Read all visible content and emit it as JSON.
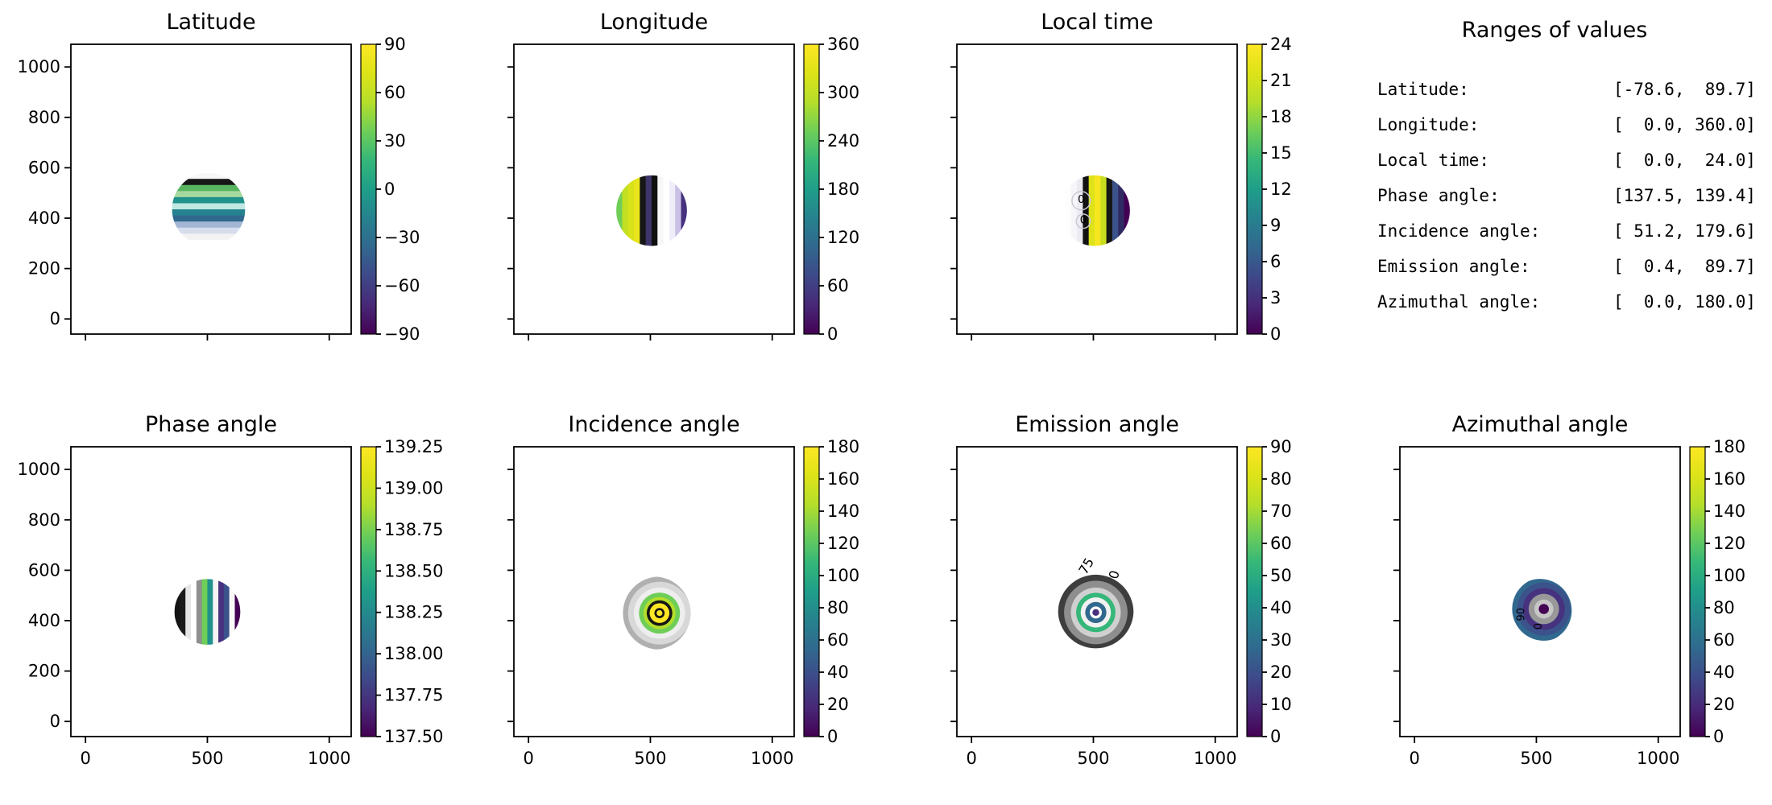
{
  "figure": {
    "background": "#ffffff",
    "text_color": "#000000"
  },
  "viridis": [
    "#440154",
    "#482878",
    "#3e4989",
    "#31688e",
    "#26828e",
    "#1f9e89",
    "#35b779",
    "#6ece58",
    "#b5de2b",
    "#dde318",
    "#fde725"
  ],
  "ranges_panel": {
    "title": "Ranges of values",
    "rows": [
      {
        "label": "Latitude:",
        "value": "[-78.6,  89.7]"
      },
      {
        "label": "Longitude:",
        "value": "[  0.0, 360.0]"
      },
      {
        "label": "Local time:",
        "value": "[  0.0,  24.0]"
      },
      {
        "label": "Phase angle:",
        "value": "[137.5, 139.4]"
      },
      {
        "label": "Incidence angle:",
        "value": "[ 51.2, 179.6]"
      },
      {
        "label": "Emission angle:",
        "value": "[  0.4,  89.7]"
      },
      {
        "label": "Azimuthal angle:",
        "value": "[  0.0, 180.0]"
      }
    ]
  },
  "chart_data": [
    {
      "id": "latitude",
      "type": "heatmap",
      "title": "Latitude",
      "xlabel": "",
      "ylabel": "",
      "grid": false,
      "xlim": [
        -60,
        1090
      ],
      "ylim": [
        -60,
        1090
      ],
      "xticks": [
        0,
        500,
        1000
      ],
      "yticks": [
        0,
        200,
        400,
        600,
        800,
        1000
      ],
      "show_xticklabels": false,
      "show_yticklabels": true,
      "data_range": [
        -78.6,
        89.7
      ],
      "colorbar": {
        "min": -90,
        "max": 90,
        "ticks": [
          90,
          60,
          30,
          0,
          -30,
          -60,
          -90
        ],
        "decimals": 0
      },
      "disk": {
        "cx": 505,
        "cy": 435,
        "r": 150,
        "pattern": "h-stripes",
        "stripes": [
          "#f7f7f7",
          "#161616",
          "#57b560",
          "#a6d9a0",
          "#21918c",
          "#bfe8e2",
          "#26828e",
          "#31688e",
          "#a3b6d4",
          "#d6dded",
          "#f2f2f2",
          "#ffffff"
        ],
        "labels": []
      }
    },
    {
      "id": "longitude",
      "type": "heatmap",
      "title": "Longitude",
      "xlabel": "",
      "ylabel": "",
      "grid": false,
      "xlim": [
        -60,
        1090
      ],
      "ylim": [
        -60,
        1090
      ],
      "xticks": [
        0,
        500,
        1000
      ],
      "yticks": [
        0,
        200,
        400,
        600,
        800,
        1000
      ],
      "show_xticklabels": false,
      "show_yticklabels": false,
      "data_range": [
        0.0,
        360.0
      ],
      "colorbar": {
        "min": 0,
        "max": 360,
        "ticks": [
          360,
          300,
          240,
          180,
          120,
          60,
          0
        ],
        "decimals": 0
      },
      "disk": {
        "cx": 505,
        "cy": 430,
        "r": 145,
        "pattern": "v-stripes",
        "stripes": [
          "#6ece58",
          "#c2df23",
          "#d8e219",
          "#e8e51c",
          "#161616",
          "#3e356b",
          "#0f0f0f",
          "#f7f7f7",
          "#ffffff",
          "#efedf8",
          "#cabfe4",
          "#46327e"
        ],
        "labels": []
      }
    },
    {
      "id": "local-time",
      "type": "heatmap",
      "title": "Local time",
      "xlabel": "",
      "ylabel": "",
      "grid": false,
      "xlim": [
        -60,
        1090
      ],
      "ylim": [
        -60,
        1090
      ],
      "xticks": [
        0,
        500,
        1000
      ],
      "yticks": [
        0,
        200,
        400,
        600,
        800,
        1000
      ],
      "show_xticklabels": false,
      "show_yticklabels": false,
      "data_range": [
        0.0,
        24.0
      ],
      "colorbar": {
        "min": 0,
        "max": 24,
        "ticks": [
          24,
          21,
          18,
          15,
          12,
          9,
          6,
          3,
          0
        ],
        "decimals": 0
      },
      "disk": {
        "cx": 505,
        "cy": 430,
        "r": 145,
        "pattern": "v-stripes",
        "stripes": [
          "#ffffff",
          "#fdfdfd",
          "#f6f6fa",
          "#ebebf2",
          "#121212",
          "#dde318",
          "#f6e620",
          "#c8dd1e",
          "#161616",
          "#3b528b",
          "#302a62",
          "#440154"
        ],
        "circles": [
          {
            "dx": -0.38,
            "dy": -0.28,
            "rf": 0.26,
            "color": "#c9c9d4"
          },
          {
            "dx": -0.32,
            "dy": 0.3,
            "rf": 0.2,
            "color": "#c9c9d4"
          }
        ],
        "labels": [
          {
            "text": "0",
            "dx": -0.38,
            "dy": -0.22,
            "color": "#b9b9c8",
            "size": 13
          },
          {
            "text": "0",
            "dx": -0.32,
            "dy": 0.36,
            "color": "#b9b9c8",
            "size": 13
          }
        ]
      }
    },
    {
      "id": "phase-angle",
      "type": "heatmap",
      "title": "Phase angle",
      "xlabel": "",
      "ylabel": "",
      "grid": false,
      "xlim": [
        -60,
        1090
      ],
      "ylim": [
        -60,
        1090
      ],
      "xticks": [
        0,
        500,
        1000
      ],
      "yticks": [
        0,
        200,
        400,
        600,
        800,
        1000
      ],
      "show_xticklabels": true,
      "show_yticklabels": true,
      "data_range": [
        137.5,
        139.4
      ],
      "colorbar": {
        "min": 137.5,
        "max": 139.25,
        "ticks": [
          139.25,
          139.0,
          138.75,
          138.5,
          138.25,
          138.0,
          137.75,
          137.5
        ],
        "decimals": 2
      },
      "disk": {
        "cx": 500,
        "cy": 435,
        "r": 135,
        "pattern": "v-stripes",
        "stripes": [
          "#141414",
          "#1b1b1b",
          "#e6e6e6",
          "#ffffff",
          "#8f8f8f",
          "#6ece58",
          "#21918c",
          "#f5f5f5",
          "#46327e",
          "#3b528b",
          "#fafafa",
          "#440154"
        ],
        "labels": []
      }
    },
    {
      "id": "incidence-angle",
      "type": "heatmap",
      "title": "Incidence angle",
      "xlabel": "",
      "ylabel": "",
      "grid": false,
      "xlim": [
        -60,
        1090
      ],
      "ylim": [
        -60,
        1090
      ],
      "xticks": [
        0,
        500,
        1000
      ],
      "yticks": [
        0,
        200,
        400,
        600,
        800,
        1000
      ],
      "show_xticklabels": true,
      "show_yticklabels": false,
      "data_range": [
        51.2,
        179.6
      ],
      "colorbar": {
        "min": 0,
        "max": 180,
        "ticks": [
          180,
          160,
          140,
          120,
          100,
          80,
          60,
          40,
          20,
          0
        ],
        "decimals": 0
      },
      "disk": {
        "cx": 515,
        "cy": 430,
        "r": 150,
        "pattern": "rings",
        "ring_dx": 0.15,
        "ring_dy": 0,
        "rings": [
          [
            1,
            "#b0b0b0"
          ],
          [
            0.86,
            "#d8d8d8"
          ],
          [
            0.7,
            "#eeeeee"
          ],
          [
            0.56,
            "#6ece58"
          ],
          [
            0.44,
            "#b5de2b"
          ],
          [
            0.35,
            "#161616"
          ],
          [
            0.27,
            "#fde725"
          ],
          [
            0.14,
            "#161616"
          ],
          [
            0.08,
            "#fde725"
          ]
        ],
        "labels": []
      }
    },
    {
      "id": "emission-angle",
      "type": "heatmap",
      "title": "Emission angle",
      "xlabel": "",
      "ylabel": "",
      "grid": false,
      "xlim": [
        -60,
        1090
      ],
      "ylim": [
        -60,
        1090
      ],
      "xticks": [
        0,
        500,
        1000
      ],
      "yticks": [
        0,
        200,
        400,
        600,
        800,
        1000
      ],
      "show_xticklabels": true,
      "show_yticklabels": false,
      "data_range": [
        0.4,
        89.7
      ],
      "colorbar": {
        "min": 0,
        "max": 90,
        "ticks": [
          90,
          80,
          70,
          60,
          50,
          40,
          30,
          20,
          10,
          0
        ],
        "decimals": 0
      },
      "disk": {
        "cx": 510,
        "cy": 440,
        "r": 155,
        "pattern": "rings",
        "ring_dx": 0,
        "ring_dy": 0.05,
        "rings": [
          [
            1,
            "#3e3e3e"
          ],
          [
            0.84,
            "#8e8e8e"
          ],
          [
            0.66,
            "#d0d0d0"
          ],
          [
            0.52,
            "#35b779"
          ],
          [
            0.4,
            "#f1f1f1"
          ],
          [
            0.28,
            "#31688e"
          ],
          [
            0.16,
            "#ffffff"
          ],
          [
            0.09,
            "#46327e"
          ]
        ],
        "labels": [
          {
            "text": "75",
            "dx": -0.15,
            "dy": -1.12,
            "rot": -60,
            "color": "#333333",
            "size": 16
          },
          {
            "text": "0",
            "dx": 0.6,
            "dy": -0.92,
            "rot": -75,
            "color": "#333333",
            "size": 16
          }
        ]
      }
    },
    {
      "id": "azimuthal-angle",
      "type": "heatmap",
      "title": "Azimuthal angle",
      "xlabel": "",
      "ylabel": "",
      "grid": false,
      "xlim": [
        -60,
        1090
      ],
      "ylim": [
        -60,
        1090
      ],
      "xticks": [
        0,
        500,
        1000
      ],
      "yticks": [
        0,
        200,
        400,
        600,
        800,
        1000
      ],
      "show_xticklabels": true,
      "show_yticklabels": false,
      "data_range": [
        0.0,
        180.0
      ],
      "colorbar": {
        "min": 0,
        "max": 180,
        "ticks": [
          180,
          160,
          140,
          120,
          100,
          80,
          60,
          40,
          20,
          0
        ],
        "decimals": 0
      },
      "disk": {
        "cx": 515,
        "cy": 440,
        "r": 130,
        "pattern": "rings",
        "ring_dx": 0.12,
        "ring_dy": -0.05,
        "rings": [
          [
            1,
            "#31688e"
          ],
          [
            0.84,
            "#3b528b"
          ],
          [
            0.66,
            "#46327e"
          ],
          [
            0.48,
            "#999999"
          ],
          [
            0.3,
            "#c6c6c6"
          ],
          [
            0.16,
            "#440154"
          ]
        ],
        "labels": [
          {
            "text": "90",
            "dx": -0.5,
            "dy": 0.12,
            "rot": -90,
            "color": "#d6d6de",
            "size": 13
          },
          {
            "text": "0",
            "dx": 0.05,
            "dy": 0.5,
            "rot": -90,
            "color": "#d6d6de",
            "size": 13
          }
        ]
      }
    }
  ]
}
